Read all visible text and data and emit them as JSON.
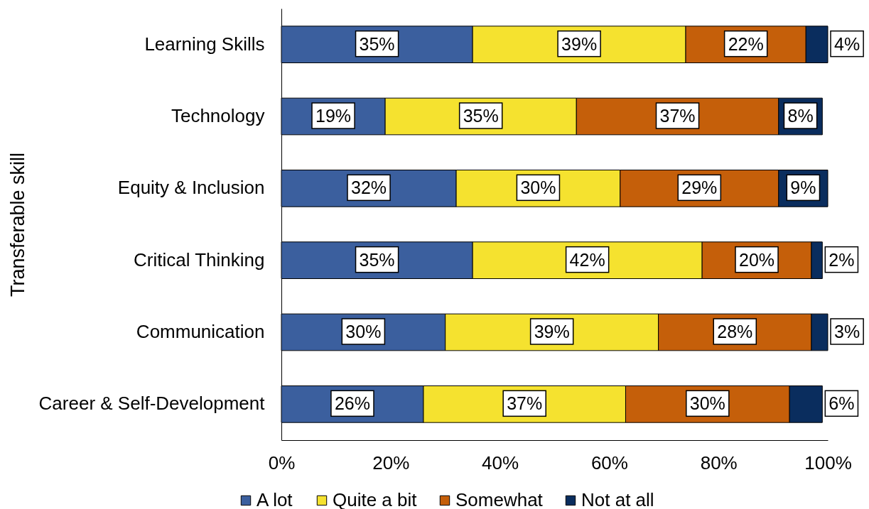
{
  "chart_data": {
    "type": "bar",
    "orientation": "horizontal",
    "stacked": true,
    "ylabel": "Transferable skill",
    "categories": [
      "Learning Skills",
      "Technology",
      "Equity & Inclusion",
      "Critical Thinking",
      "Communication",
      "Career & Self-Development"
    ],
    "series": [
      {
        "name": "A lot",
        "color": "#3b5f9e",
        "values": [
          35,
          19,
          32,
          35,
          30,
          26
        ],
        "value_labels": [
          "35%",
          "19%",
          "32%",
          "35%",
          "30%",
          "26%"
        ]
      },
      {
        "name": "Quite a bit",
        "color": "#f5e22f",
        "values": [
          39,
          35,
          30,
          42,
          39,
          37
        ],
        "value_labels": [
          "39%",
          "35%",
          "30%",
          "42%",
          "39%",
          "37%"
        ]
      },
      {
        "name": "Somewhat",
        "color": "#c55f0a",
        "values": [
          22,
          37,
          29,
          20,
          28,
          30
        ],
        "value_labels": [
          "22%",
          "37%",
          "29%",
          "20%",
          "28%",
          "30%"
        ]
      },
      {
        "name": "Not at all",
        "color": "#0a2d5e",
        "values": [
          4,
          8,
          9,
          2,
          3,
          6
        ],
        "value_labels": [
          "4%",
          "8%",
          "9%",
          "2%",
          "3%",
          "6%"
        ]
      }
    ],
    "xlim": [
      0,
      100
    ],
    "xticks": [
      {
        "value": 0,
        "label": "0%"
      },
      {
        "value": 20,
        "label": "20%"
      },
      {
        "value": 40,
        "label": "40%"
      },
      {
        "value": 60,
        "label": "60%"
      },
      {
        "value": 80,
        "label": "80%"
      },
      {
        "value": 100,
        "label": "100%"
      }
    ],
    "legend": "bottom"
  }
}
